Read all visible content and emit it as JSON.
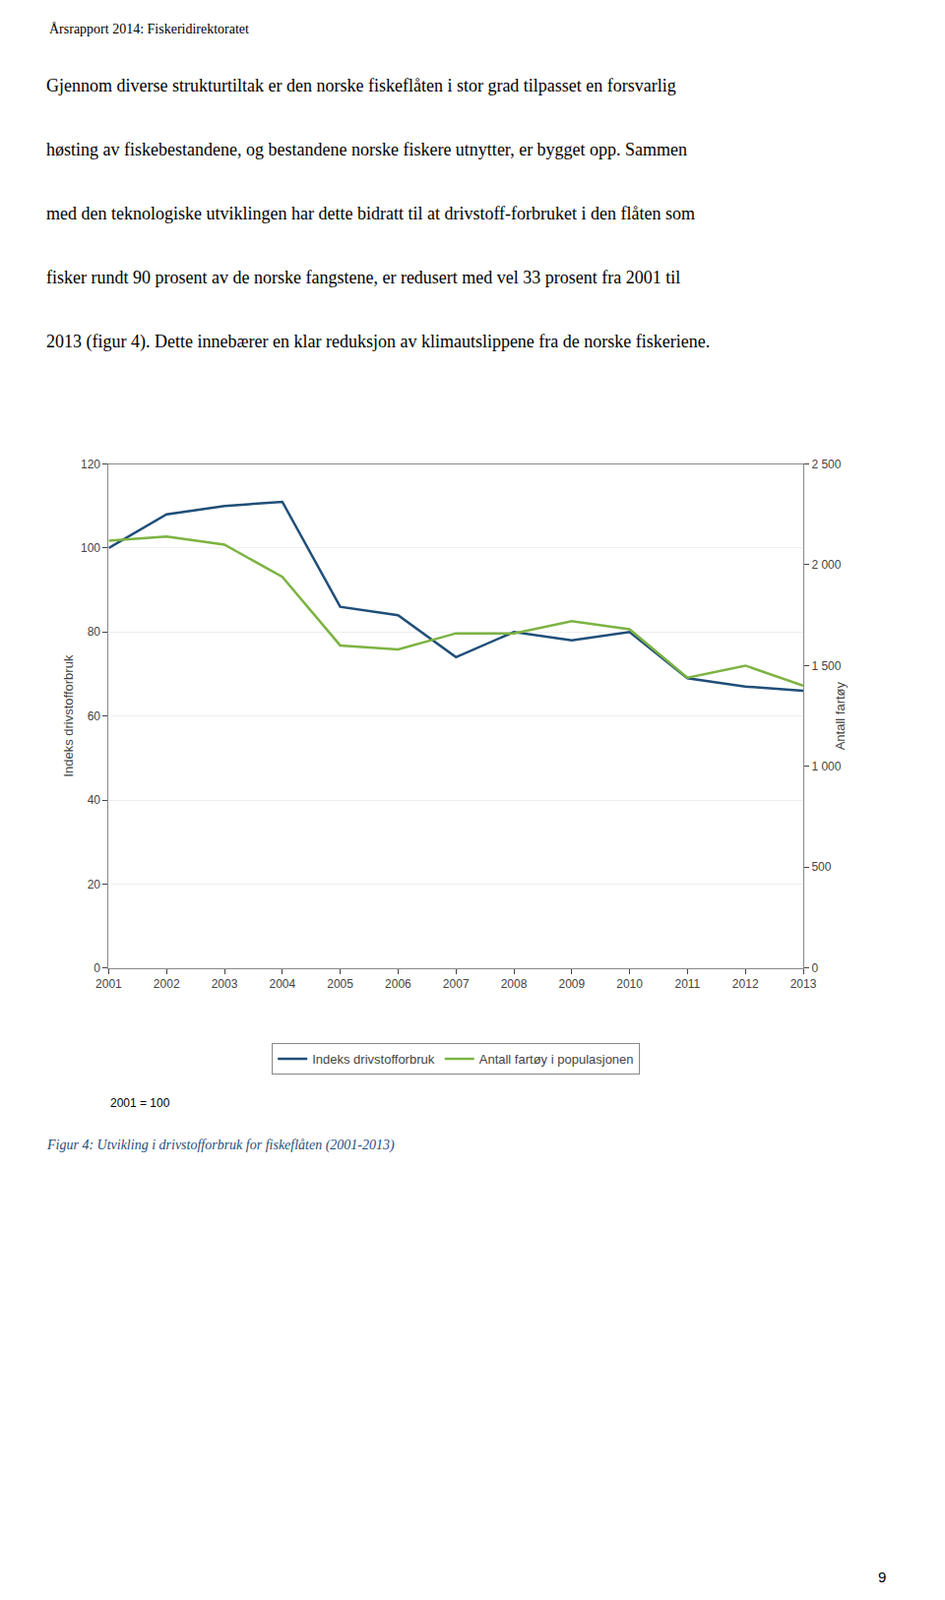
{
  "chart_data": {
    "type": "line",
    "x": [
      2001,
      2002,
      2003,
      2004,
      2005,
      2006,
      2007,
      2008,
      2009,
      2010,
      2011,
      2012,
      2013
    ],
    "series": [
      {
        "name": "Indeks drivstofforbruk",
        "color": "#1f4e79",
        "values": [
          100,
          108,
          110,
          111,
          86,
          84,
          74,
          80,
          78,
          80,
          69,
          67,
          66
        ]
      },
      {
        "name": "Antall fartøy i populasjonen",
        "color": "#7cb342",
        "axis": "y2",
        "values": [
          2120,
          2140,
          2100,
          1940,
          1600,
          1580,
          1660,
          1660,
          1720,
          1680,
          1440,
          1500,
          1400
        ]
      }
    ],
    "xlim": [
      2001,
      2013
    ],
    "xticks": [
      2001,
      2002,
      2003,
      2004,
      2005,
      2006,
      2007,
      2008,
      2009,
      2010,
      2011,
      2012,
      2013
    ],
    "ylabel": "Indeks drivstofforbruk",
    "ylim": [
      0,
      120
    ],
    "yticks": [
      0,
      20,
      40,
      60,
      80,
      100,
      120
    ],
    "y2label": "Antall fartøy",
    "y2lim": [
      0,
      2500
    ],
    "y2ticks": [
      0,
      500,
      {
        "value": 1000,
        "label": "1 000"
      },
      {
        "value": 1500,
        "label": "1 500"
      },
      {
        "value": 2000,
        "label": "2 000"
      },
      {
        "value": 2500,
        "label": "2 500"
      }
    ],
    "grid": true,
    "legend": "bottom",
    "annotations": [
      "Årsrapport 2014: Fiskeridirektoratet",
      "Gjennom diverse strukturtiltak er den norske fiskeflåten i stor grad tilpasset en forsvarlig",
      "høsting av fiskebestandene, og bestandene norske fiskere utnytter, er bygget opp. Sammen",
      "med den teknologiske utviklingen har dette bidratt til at drivstoff-forbruket i den flåten som",
      "fisker rundt 90 prosent av de norske fangstene, er redusert med vel 33 prosent fra 2001 til",
      "2013 (figur 4). Dette innebærer en klar reduksjon av klimautslippene fra de norske fiskeriene.",
      "2001 = 100",
      "Figur 4: Utvikling i drivstofforbruk for fiskeflåten (2001-2013)",
      "9"
    ]
  }
}
